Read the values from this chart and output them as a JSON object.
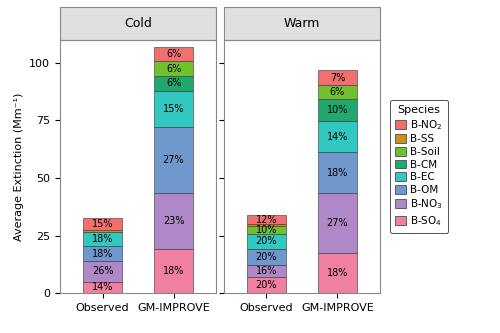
{
  "species": [
    "B-SO4",
    "B-NO3",
    "B-OM",
    "B-EC",
    "B-CM",
    "B-Soil",
    "B-SS",
    "B-NO2"
  ],
  "colors": [
    "#F080A0",
    "#B088C8",
    "#7098CC",
    "#30C8C0",
    "#20A870",
    "#70C030",
    "#C89020",
    "#F07070"
  ],
  "cold_observed_pct": [
    14,
    26,
    18,
    18,
    0,
    0,
    2,
    15
  ],
  "cold_gm_pct": [
    18,
    23,
    27,
    15,
    6,
    6,
    0,
    6
  ],
  "warm_observed_pct": [
    20,
    16,
    20,
    20,
    0,
    10,
    2,
    12
  ],
  "warm_gm_pct": [
    18,
    27,
    18,
    14,
    10,
    6,
    0,
    7
  ],
  "cold_observed_total": 35,
  "cold_gm_total": 106,
  "warm_observed_total": 34,
  "warm_gm_total": 97,
  "ylabel": "Average Extinction (Mm⁻¹)",
  "ylim": [
    0,
    110
  ],
  "yticks": [
    0,
    25,
    50,
    75,
    100
  ],
  "panel_labels": [
    "Cold",
    "Warm"
  ],
  "bar_labels": [
    "Observed",
    "GM-IMPROVE"
  ],
  "title_fontsize": 9,
  "axis_fontsize": 8,
  "tick_fontsize": 8,
  "legend_fontsize": 7.5,
  "bar_width": 0.55,
  "strip_color": "#E0E0E0",
  "edge_color": "#888888"
}
